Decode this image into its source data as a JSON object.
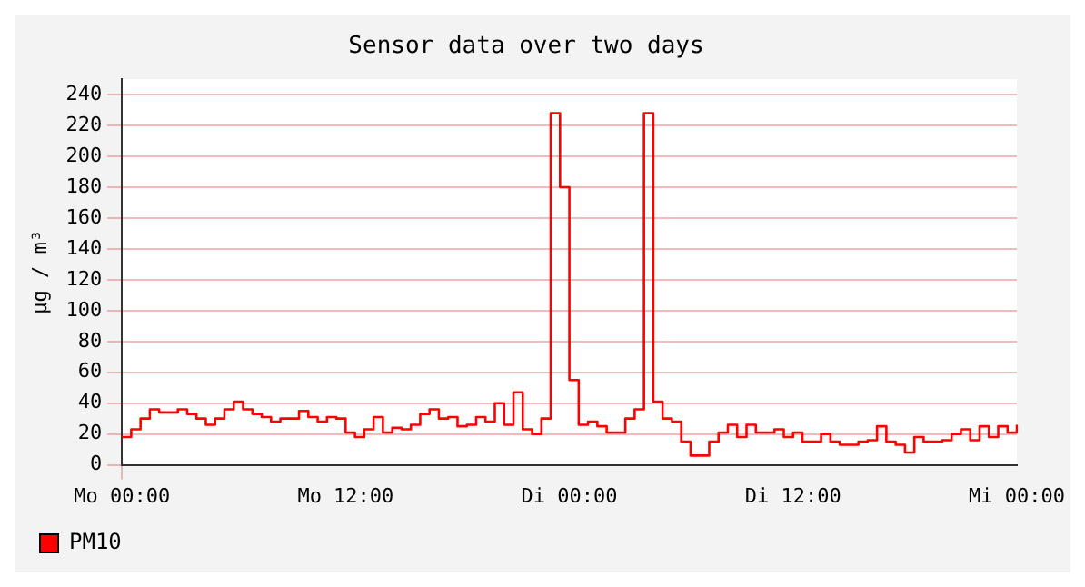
{
  "chart_data": {
    "type": "step",
    "title": "Sensor data over two days",
    "ylabel": "µg / m³",
    "categories": [
      "Mo 00:00",
      null,
      null,
      null,
      null,
      null,
      null,
      null,
      null,
      null,
      null,
      null,
      null,
      null,
      null,
      null,
      null,
      null,
      null,
      null,
      null,
      null,
      null,
      null,
      "Mo 12:00",
      null,
      null,
      null,
      null,
      null,
      null,
      null,
      null,
      null,
      null,
      null,
      null,
      null,
      null,
      null,
      null,
      null,
      null,
      null,
      null,
      null,
      null,
      null,
      "Di 00:00",
      null,
      null,
      null,
      null,
      null,
      null,
      null,
      null,
      null,
      null,
      null,
      null,
      null,
      null,
      null,
      null,
      null,
      null,
      null,
      null,
      null,
      null,
      null,
      "Di 12:00",
      null,
      null,
      null,
      null,
      null,
      null,
      null,
      null,
      null,
      null,
      null,
      null,
      null,
      null,
      null,
      null,
      null,
      null,
      null,
      null,
      null,
      null,
      null,
      "Mi 00:00"
    ],
    "ylim": [
      0,
      250
    ],
    "yticks": [
      0,
      20,
      40,
      60,
      80,
      100,
      120,
      140,
      160,
      180,
      200,
      220,
      240
    ],
    "grid": true,
    "legend": "bottom left",
    "marker": "none",
    "line_style": "solid",
    "series": [
      {
        "name": "PM10",
        "color": "#ff0000",
        "values": [
          18,
          23,
          30,
          36,
          34,
          34,
          36,
          33,
          30,
          26,
          30,
          36,
          41,
          36,
          33,
          31,
          28,
          30,
          30,
          35,
          31,
          28,
          31,
          30,
          21,
          18,
          23,
          31,
          21,
          24,
          23,
          26,
          33,
          36,
          30,
          31,
          25,
          26,
          31,
          28,
          40,
          26,
          47,
          23,
          20,
          30,
          228,
          180,
          55,
          26,
          28,
          25,
          21,
          21,
          30,
          36,
          228,
          41,
          30,
          28,
          15,
          6,
          6,
          15,
          21,
          26,
          18,
          26,
          21,
          21,
          23,
          18,
          21,
          15,
          15,
          20,
          15,
          13,
          13,
          15,
          16,
          25,
          15,
          13,
          8,
          18,
          15,
          15,
          16,
          20,
          23,
          16,
          25,
          18,
          25,
          21,
          26
        ]
      }
    ]
  }
}
